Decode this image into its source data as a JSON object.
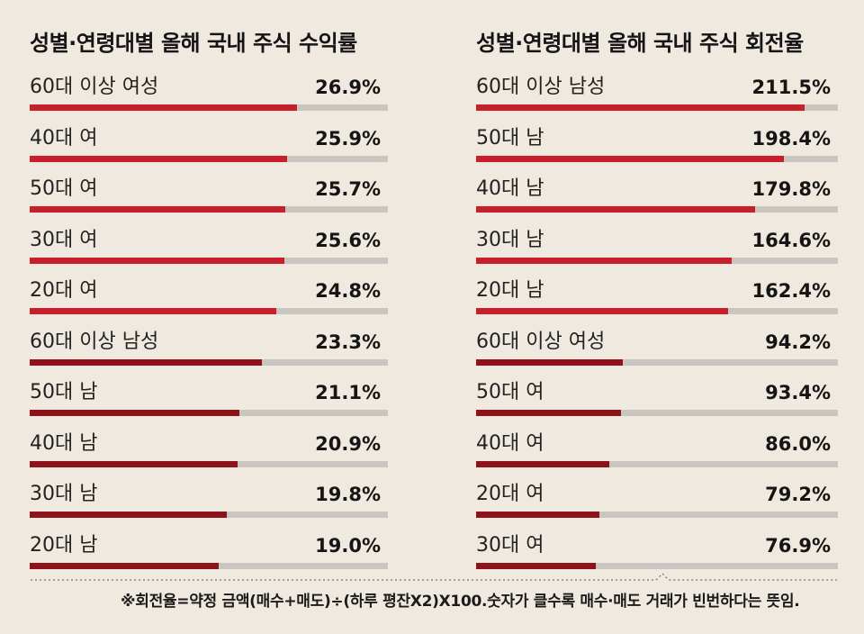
{
  "colors": {
    "background": "#efe9df",
    "bar_red": "#c8202a",
    "bar_dark_red": "#8e1219",
    "bar_track": "#c9c6c2"
  },
  "footnote": "※회전율=약정 금액(매수+매도)÷(하루 평잔X2)X100.숫자가 클수록 매수·매도 거래가 빈번하다는 뜻임.",
  "chart_data": [
    {
      "type": "bar",
      "orientation": "horizontal",
      "title": "성별·연령대별 올해 국내 주식 수익률",
      "categories": [
        "60대 이상 여성",
        "40대 여",
        "50대 여",
        "30대 여",
        "20대 여",
        "60대 이상 남성",
        "50대 남",
        "40대 남",
        "30대 남",
        "20대 남"
      ],
      "values": [
        26.9,
        25.9,
        25.7,
        25.6,
        24.8,
        23.3,
        21.1,
        20.9,
        19.8,
        19.0
      ],
      "value_labels": [
        "26.9%",
        "25.9%",
        "25.7%",
        "25.6%",
        "24.8%",
        "23.3%",
        "21.1%",
        "20.9%",
        "19.8%",
        "19.0%"
      ],
      "bar_colors": [
        "red",
        "red",
        "red",
        "red",
        "red",
        "dark",
        "dark",
        "dark",
        "dark",
        "dark"
      ],
      "xlim": [
        0,
        36
      ]
    },
    {
      "type": "bar",
      "orientation": "horizontal",
      "title": "성별·연령대별 올해 국내 주식 회전율",
      "categories": [
        "60대 이상 남성",
        "50대 남",
        "40대 남",
        "30대 남",
        "20대 남",
        "60대 이상 여성",
        "50대 여",
        "40대 여",
        "20대 여",
        "30대 여"
      ],
      "values": [
        211.5,
        198.4,
        179.8,
        164.6,
        162.4,
        94.2,
        93.4,
        86.0,
        79.2,
        76.9
      ],
      "value_labels": [
        "211.5%",
        "198.4%",
        "179.8%",
        "164.6%",
        "162.4%",
        "94.2%",
        "93.4%",
        "86.0%",
        "79.2%",
        "76.9%"
      ],
      "bar_colors": [
        "red",
        "red",
        "red",
        "red",
        "red",
        "dark",
        "dark",
        "dark",
        "dark",
        "dark"
      ],
      "xlim": [
        0,
        233
      ]
    }
  ]
}
